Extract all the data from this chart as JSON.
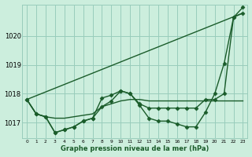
{
  "title": "Graphe pression niveau de la mer (hPa)",
  "bg_color": "#cceedd",
  "grid_color": "#99ccbb",
  "line_color": "#1a5c2a",
  "x_ticks": [
    0,
    1,
    2,
    3,
    4,
    5,
    6,
    7,
    8,
    9,
    10,
    11,
    12,
    13,
    14,
    15,
    16,
    17,
    18,
    19,
    20,
    21,
    22,
    23
  ],
  "ylim": [
    1016.45,
    1021.1
  ],
  "y_ticks": [
    1017,
    1018,
    1019,
    1020
  ],
  "series": [
    {
      "x": [
        0,
        1,
        2,
        3,
        4,
        5,
        6,
        7,
        8,
        9,
        10,
        11,
        12,
        13,
        14,
        15,
        16,
        17,
        18,
        19,
        20,
        21,
        22,
        23
      ],
      "y": [
        1017.8,
        1017.3,
        1017.2,
        1016.65,
        1016.75,
        1016.85,
        1017.05,
        1017.15,
        1017.85,
        1017.95,
        1018.1,
        1018.0,
        1017.6,
        1017.15,
        1017.05,
        1017.05,
        1016.95,
        1016.85,
        1016.85,
        1017.35,
        1018.0,
        1019.05,
        1020.65,
        1021.0
      ],
      "marker": true
    },
    {
      "x": [
        0,
        1,
        2,
        3,
        4,
        5,
        6,
        7,
        8,
        9,
        10,
        11,
        12,
        13,
        14,
        15,
        16,
        17,
        18,
        19,
        20,
        21,
        22,
        23
      ],
      "y": [
        1017.8,
        1017.3,
        1017.2,
        1017.15,
        1017.15,
        1017.2,
        1017.25,
        1017.3,
        1017.55,
        1017.65,
        1017.75,
        1017.8,
        1017.8,
        1017.75,
        1017.75,
        1017.75,
        1017.75,
        1017.75,
        1017.75,
        1017.75,
        1017.75,
        1017.75,
        1017.75,
        1017.75
      ],
      "marker": false
    },
    {
      "x": [
        0,
        1,
        2,
        3,
        4,
        5,
        6,
        7,
        8,
        9,
        10,
        11,
        12,
        13,
        14,
        15,
        16,
        17,
        18,
        19,
        20,
        21,
        22,
        23
      ],
      "y": [
        1017.8,
        1017.3,
        1017.2,
        1016.65,
        1016.75,
        1016.85,
        1017.05,
        1017.15,
        1017.55,
        1017.75,
        1018.1,
        1018.0,
        1017.65,
        1017.5,
        1017.5,
        1017.5,
        1017.5,
        1017.5,
        1017.5,
        1017.8,
        1017.8,
        1018.0,
        1020.65,
        1020.8
      ],
      "marker": true
    },
    {
      "x": [
        0,
        23
      ],
      "y": [
        1017.8,
        1020.8
      ],
      "marker": false
    }
  ]
}
